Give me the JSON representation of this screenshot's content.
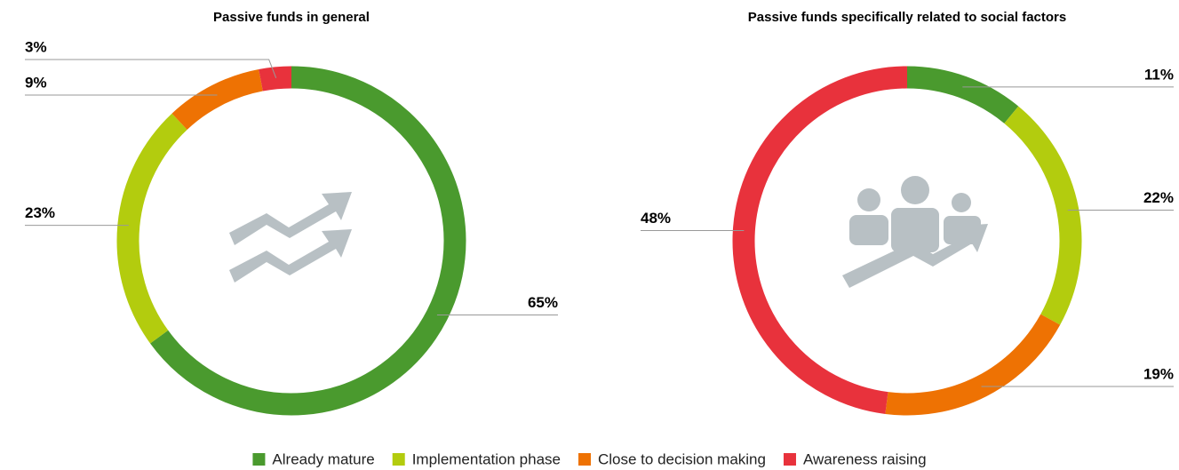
{
  "chart_data": [
    {
      "type": "pie",
      "title": "Passive funds in general",
      "values": [
        65,
        23,
        9,
        3
      ],
      "value_labels": [
        "65%",
        "23%",
        "9%",
        "3%"
      ]
    },
    {
      "type": "pie",
      "title": "Passive funds specifically related to social factors",
      "values": [
        11,
        22,
        19,
        48
      ],
      "value_labels": [
        "11%",
        "22%",
        "19%",
        "48%"
      ]
    }
  ],
  "legend": {
    "categories": [
      "Already mature",
      "Implementation phase",
      "Close to decision making",
      "Awareness raising"
    ],
    "colors": [
      "#4a9a2e",
      "#b3cc0e",
      "#ee7203",
      "#e8323c"
    ]
  }
}
